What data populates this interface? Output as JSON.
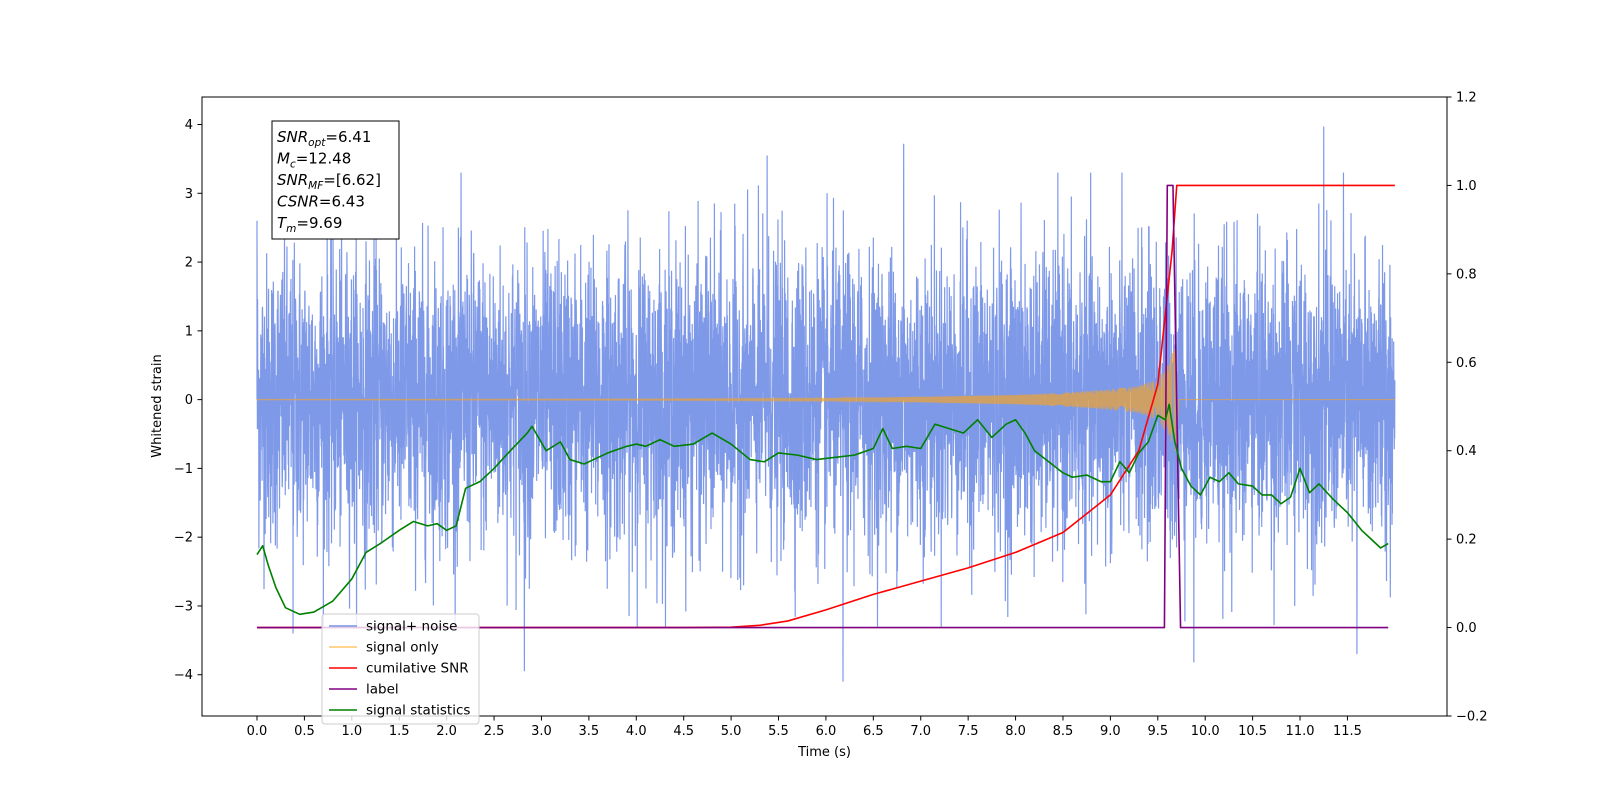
{
  "chart_data": {
    "type": "line",
    "xlabel": "Time (s)",
    "ylabel": "Whitened strain",
    "xlim": [
      -0.58,
      12.55
    ],
    "ylim": [
      -4.6,
      4.4
    ],
    "ylim_right": [
      -0.2,
      1.2
    ],
    "x_ticks": [
      0.0,
      0.5,
      1.0,
      1.5,
      2.0,
      2.5,
      3.0,
      3.5,
      4.0,
      4.5,
      5.0,
      5.5,
      6.0,
      6.5,
      7.0,
      7.5,
      8.0,
      8.5,
      9.0,
      9.5,
      10.0,
      10.5,
      11.0,
      11.5
    ],
    "x_tick_labels": [
      "0.0",
      "0.5",
      "1.0",
      "1.5",
      "2.0",
      "2.5",
      "3.0",
      "3.5",
      "4.0",
      "4.5",
      "5.0",
      "5.5",
      "6.0",
      "6.5",
      "7.0",
      "7.5",
      "8.0",
      "8.5",
      "9.0",
      "9.5",
      "10.0",
      "10.5",
      "11.0",
      "11.5"
    ],
    "y_ticks_left": [
      -4,
      -3,
      -2,
      -1,
      0,
      1,
      2,
      3,
      4
    ],
    "y_tick_labels_left": [
      "−4",
      "−3",
      "−2",
      "−1",
      "0",
      "1",
      "2",
      "3",
      "4"
    ],
    "y_ticks_right": [
      -0.2,
      0.0,
      0.2,
      0.4,
      0.6,
      0.8,
      1.0,
      1.2
    ],
    "y_tick_labels_right": [
      "−0.2",
      "0.0",
      "0.2",
      "0.4",
      "0.6",
      "0.8",
      "1.0",
      "1.2"
    ],
    "grid": false,
    "legend_position": "lower-left",
    "annotation": {
      "lines": [
        {
          "main": "SNR",
          "sub": "opt",
          "value": "=6.41"
        },
        {
          "main": "M",
          "sub": "c",
          "value": "=12.48"
        },
        {
          "main": "SNR",
          "sub": "MF",
          "value": "=[6.62]"
        },
        {
          "main": "CSNR",
          "sub": "",
          "value": "=6.43"
        },
        {
          "main": "T",
          "sub": "m",
          "value": "=9.69"
        }
      ]
    },
    "series": [
      {
        "name": "signal+ noise",
        "axis": "left",
        "color": "#7894e8",
        "kind": "noise",
        "x_range": [
          0.0,
          12.0
        ],
        "typical_amplitude": 2.4,
        "peak_values": [
          {
            "x": 0.0,
            "y": 2.6
          },
          {
            "x": 0.38,
            "y": -3.4
          },
          {
            "x": 2.82,
            "y": -3.95
          },
          {
            "x": 5.38,
            "y": 3.55
          },
          {
            "x": 6.18,
            "y": -4.1
          },
          {
            "x": 6.82,
            "y": 3.72
          },
          {
            "x": 9.88,
            "y": -3.82
          },
          {
            "x": 11.25,
            "y": 3.97
          },
          {
            "x": 11.6,
            "y": -3.7
          }
        ]
      },
      {
        "name": "signal only",
        "axis": "left",
        "color": "#e8a33a",
        "kind": "chirp",
        "x_range": [
          0.0,
          12.0
        ],
        "merger_time": 9.69,
        "envelope": [
          [
            0.0,
            0.005
          ],
          [
            4.0,
            0.01
          ],
          [
            6.0,
            0.02
          ],
          [
            7.0,
            0.04
          ],
          [
            8.0,
            0.07
          ],
          [
            8.5,
            0.1
          ],
          [
            9.0,
            0.15
          ],
          [
            9.3,
            0.2
          ],
          [
            9.5,
            0.3
          ],
          [
            9.6,
            0.5
          ],
          [
            9.69,
            0.8
          ],
          [
            9.72,
            0.0
          ],
          [
            12.0,
            0.0
          ]
        ]
      },
      {
        "name": "cumilative SNR",
        "axis": "right",
        "color": "#ff0000",
        "points": [
          [
            0.0,
            0.0
          ],
          [
            4.5,
            0.0
          ],
          [
            5.0,
            0.001
          ],
          [
            5.3,
            0.005
          ],
          [
            5.6,
            0.015
          ],
          [
            6.0,
            0.04
          ],
          [
            6.5,
            0.075
          ],
          [
            7.0,
            0.105
          ],
          [
            7.5,
            0.135
          ],
          [
            8.0,
            0.17
          ],
          [
            8.5,
            0.215
          ],
          [
            9.0,
            0.3
          ],
          [
            9.3,
            0.4
          ],
          [
            9.5,
            0.55
          ],
          [
            9.65,
            0.85
          ],
          [
            9.7,
            1.0
          ],
          [
            12.0,
            1.0
          ]
        ]
      },
      {
        "name": "label",
        "axis": "right",
        "color": "#800080",
        "points": [
          [
            0.0,
            0.0
          ],
          [
            9.57,
            0.0
          ],
          [
            9.6,
            1.0
          ],
          [
            9.66,
            1.0
          ],
          [
            9.74,
            0.0
          ],
          [
            11.93,
            0.0
          ]
        ]
      },
      {
        "name": "signal statistics",
        "axis": "right",
        "color": "#008000",
        "points": [
          [
            0.0,
            0.165
          ],
          [
            0.06,
            0.185
          ],
          [
            0.12,
            0.14
          ],
          [
            0.2,
            0.09
          ],
          [
            0.3,
            0.045
          ],
          [
            0.45,
            0.03
          ],
          [
            0.6,
            0.035
          ],
          [
            0.8,
            0.06
          ],
          [
            1.0,
            0.11
          ],
          [
            1.15,
            0.17
          ],
          [
            1.3,
            0.19
          ],
          [
            1.5,
            0.22
          ],
          [
            1.65,
            0.24
          ],
          [
            1.8,
            0.23
          ],
          [
            1.9,
            0.235
          ],
          [
            2.0,
            0.22
          ],
          [
            2.1,
            0.23
          ],
          [
            2.2,
            0.315
          ],
          [
            2.35,
            0.33
          ],
          [
            2.5,
            0.36
          ],
          [
            2.65,
            0.395
          ],
          [
            2.85,
            0.44
          ],
          [
            2.9,
            0.455
          ],
          [
            3.05,
            0.4
          ],
          [
            3.2,
            0.42
          ],
          [
            3.3,
            0.38
          ],
          [
            3.45,
            0.37
          ],
          [
            3.55,
            0.38
          ],
          [
            3.7,
            0.395
          ],
          [
            3.9,
            0.41
          ],
          [
            4.0,
            0.415
          ],
          [
            4.1,
            0.41
          ],
          [
            4.25,
            0.425
          ],
          [
            4.4,
            0.41
          ],
          [
            4.6,
            0.415
          ],
          [
            4.8,
            0.44
          ],
          [
            5.0,
            0.415
          ],
          [
            5.2,
            0.38
          ],
          [
            5.35,
            0.375
          ],
          [
            5.5,
            0.395
          ],
          [
            5.7,
            0.39
          ],
          [
            5.9,
            0.38
          ],
          [
            6.1,
            0.385
          ],
          [
            6.3,
            0.39
          ],
          [
            6.5,
            0.405
          ],
          [
            6.6,
            0.45
          ],
          [
            6.7,
            0.405
          ],
          [
            6.85,
            0.41
          ],
          [
            7.0,
            0.405
          ],
          [
            7.15,
            0.46
          ],
          [
            7.3,
            0.45
          ],
          [
            7.45,
            0.44
          ],
          [
            7.6,
            0.47
          ],
          [
            7.75,
            0.43
          ],
          [
            7.9,
            0.46
          ],
          [
            8.0,
            0.47
          ],
          [
            8.1,
            0.44
          ],
          [
            8.2,
            0.4
          ],
          [
            8.35,
            0.375
          ],
          [
            8.5,
            0.35
          ],
          [
            8.6,
            0.34
          ],
          [
            8.75,
            0.345
          ],
          [
            8.9,
            0.33
          ],
          [
            9.0,
            0.33
          ],
          [
            9.1,
            0.375
          ],
          [
            9.2,
            0.35
          ],
          [
            9.3,
            0.395
          ],
          [
            9.4,
            0.42
          ],
          [
            9.5,
            0.48
          ],
          [
            9.58,
            0.47
          ],
          [
            9.62,
            0.505
          ],
          [
            9.68,
            0.42
          ],
          [
            9.75,
            0.36
          ],
          [
            9.85,
            0.32
          ],
          [
            9.95,
            0.3
          ],
          [
            10.05,
            0.34
          ],
          [
            10.15,
            0.33
          ],
          [
            10.25,
            0.35
          ],
          [
            10.35,
            0.325
          ],
          [
            10.5,
            0.32
          ],
          [
            10.6,
            0.3
          ],
          [
            10.7,
            0.3
          ],
          [
            10.8,
            0.28
          ],
          [
            10.9,
            0.295
          ],
          [
            11.0,
            0.36
          ],
          [
            11.1,
            0.305
          ],
          [
            11.2,
            0.325
          ],
          [
            11.35,
            0.29
          ],
          [
            11.5,
            0.26
          ],
          [
            11.65,
            0.22
          ],
          [
            11.75,
            0.2
          ],
          [
            11.85,
            0.18
          ],
          [
            11.93,
            0.19
          ]
        ]
      }
    ],
    "legend": [
      {
        "name": "signal+ noise",
        "color": "#7894e8"
      },
      {
        "name": "signal only",
        "color": "#ffc66a"
      },
      {
        "name": "cumilative SNR",
        "color": "#ff0000"
      },
      {
        "name": "label",
        "color": "#800080"
      },
      {
        "name": "signal statistics",
        "color": "#008000"
      }
    ]
  }
}
